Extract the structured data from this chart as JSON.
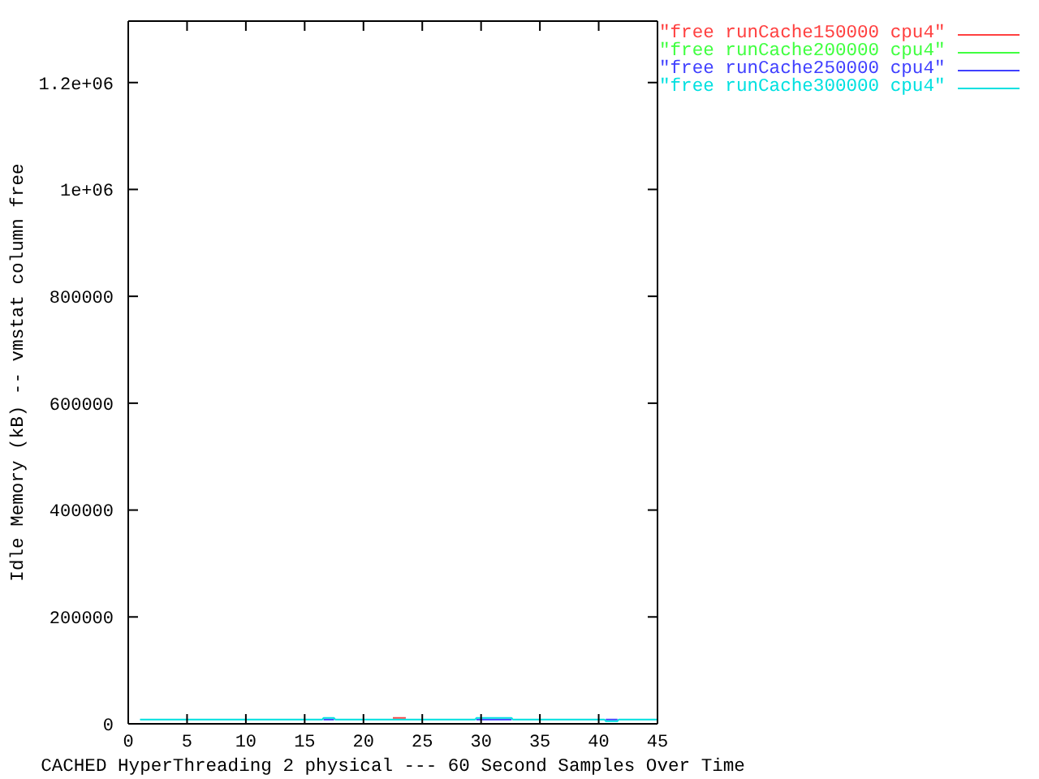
{
  "chart_data": {
    "type": "line",
    "xlabel": "CACHED HyperThreading 2 physical --- 60 Second Samples Over Time",
    "ylabel": "Idle Memory (kB) -- vmstat column free",
    "series": [
      {
        "name": "\"free runCache150000 cpu4\"",
        "color": "#ff4040",
        "x": [
          22.5,
          23.6
        ],
        "values": [
          11000,
          11000
        ]
      },
      {
        "name": "\"free runCache200000 cpu4\"",
        "color": "#40ff40"
      },
      {
        "name": "\"free runCache250000 cpu4\"",
        "color": "#4040ff",
        "x": [
          16.6,
          17.5,
          20,
          29.6,
          32.6,
          36,
          40.6,
          41.6
        ],
        "values": [
          8000,
          8000,
          null,
          8000,
          8000,
          null,
          8000,
          8000
        ]
      },
      {
        "name": "\"free runCache300000 cpu4\"",
        "color": "#00e0e0",
        "x": [
          1,
          16.5,
          16.6,
          17.5,
          17.6,
          29.5,
          29.6,
          32.6,
          32.7,
          40.5,
          40.6,
          41.6,
          41.7,
          45
        ],
        "values": [
          8000,
          8000,
          11000,
          11000,
          8000,
          8000,
          11000,
          11000,
          8000,
          8000,
          5000,
          5000,
          8000,
          8000
        ]
      }
    ],
    "xlim": [
      0,
      45
    ],
    "xticks": [
      0,
      5,
      10,
      15,
      20,
      25,
      30,
      35,
      40,
      45
    ],
    "ylim": [
      0,
      1315000
    ],
    "yticks": [
      0,
      200000,
      400000,
      600000,
      800000,
      {
        "value": 1000000,
        "label": "1e+06"
      },
      {
        "value": 1200000,
        "label": "1.2e+06"
      }
    ],
    "legend": "top right",
    "marker": "none",
    "line_style": "solid",
    "grid": false
  }
}
